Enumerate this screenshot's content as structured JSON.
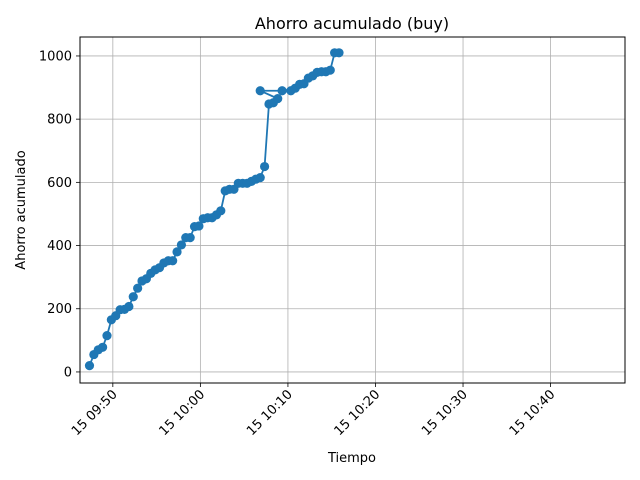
{
  "chart_data": {
    "type": "line",
    "title": "Ahorro acumulado (buy)",
    "xlabel": "Tiempo",
    "ylabel": "Ahorro acumulado",
    "x_ticks": [
      "15 09:50",
      "15 10:00",
      "15 10:10",
      "15 10:20",
      "15 10:30",
      "15 10:40"
    ],
    "y_ticks": [
      "0",
      "200",
      "400",
      "600",
      "800",
      "1000"
    ],
    "ylim": [
      -35,
      1060
    ],
    "xlim": [
      "15 09:46:15",
      "15 10:48:30"
    ],
    "grid": true,
    "color": "#1f77b4",
    "series": [
      {
        "name": "",
        "points": [
          [
            "15 09:47:20",
            20
          ],
          [
            "15 09:47:50",
            55
          ],
          [
            "15 09:48:20",
            70
          ],
          [
            "15 09:48:50",
            78
          ],
          [
            "15 09:49:20",
            115
          ],
          [
            "15 09:49:50",
            165
          ],
          [
            "15 09:50:20",
            178
          ],
          [
            "15 09:50:50",
            197
          ],
          [
            "15 09:51:20",
            198
          ],
          [
            "15 09:51:50",
            207
          ],
          [
            "15 09:52:20",
            238
          ],
          [
            "15 09:52:50",
            265
          ],
          [
            "15 09:53:20",
            288
          ],
          [
            "15 09:53:50",
            295
          ],
          [
            "15 09:54:20",
            312
          ],
          [
            "15 09:54:50",
            323
          ],
          [
            "15 09:55:20",
            330
          ],
          [
            "15 09:55:50",
            345
          ],
          [
            "15 09:56:20",
            352
          ],
          [
            "15 09:56:50",
            352
          ],
          [
            "15 09:57:20",
            380
          ],
          [
            "15 09:57:50",
            402
          ],
          [
            "15 09:58:20",
            425
          ],
          [
            "15 09:58:50",
            425
          ],
          [
            "15 09:59:20",
            460
          ],
          [
            "15 09:59:50",
            462
          ],
          [
            "15 10:00:20",
            485
          ],
          [
            "15 10:00:50",
            488
          ],
          [
            "15 10:01:20",
            488
          ],
          [
            "15 10:01:50",
            497
          ],
          [
            "15 10:02:20",
            510
          ],
          [
            "15 10:02:50",
            573
          ],
          [
            "15 10:03:20",
            578
          ],
          [
            "15 10:03:50",
            578
          ],
          [
            "15 10:04:20",
            597
          ],
          [
            "15 10:04:50",
            597
          ],
          [
            "15 10:05:20",
            597
          ],
          [
            "15 10:05:50",
            603
          ],
          [
            "15 10:06:20",
            610
          ],
          [
            "15 10:06:50",
            615
          ],
          [
            "15 10:07:20",
            650
          ],
          [
            "15 10:07:50",
            848
          ],
          [
            "15 10:08:20",
            852
          ],
          [
            "15 10:08:50",
            865
          ],
          [
            "15 10:06:50",
            890
          ],
          [
            "15 10:09:20",
            890
          ],
          [
            "15 10:10:20",
            890
          ],
          [
            "15 10:10:50",
            898
          ],
          [
            "15 10:11:20",
            910
          ],
          [
            "15 10:11:50",
            912
          ],
          [
            "15 10:12:20",
            930
          ],
          [
            "15 10:12:50",
            937
          ],
          [
            "15 10:13:20",
            948
          ],
          [
            "15 10:13:50",
            950
          ],
          [
            "15 10:14:20",
            950
          ],
          [
            "15 10:14:50",
            955
          ],
          [
            "15 10:15:20",
            1010
          ],
          [
            "15 10:15:50",
            1010
          ]
        ]
      }
    ]
  }
}
